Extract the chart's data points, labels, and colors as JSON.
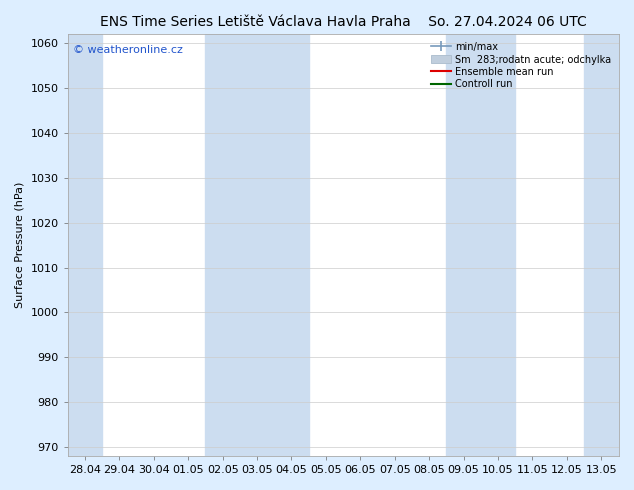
{
  "title_left": "ENS Time Series Letiště Václava Havla Praha",
  "title_right": "So. 27.04.2024 06 UTC",
  "ylabel": "Surface Pressure (hPa)",
  "ylim": [
    968,
    1062
  ],
  "yticks": [
    970,
    980,
    990,
    1000,
    1010,
    1020,
    1030,
    1040,
    1050,
    1060
  ],
  "xtick_labels": [
    "28.04",
    "29.04",
    "30.04",
    "01.05",
    "02.05",
    "03.05",
    "04.05",
    "05.05",
    "06.05",
    "07.05",
    "08.05",
    "09.05",
    "10.05",
    "11.05",
    "12.05",
    "13.05"
  ],
  "xtick_positions": [
    0,
    1,
    2,
    3,
    4,
    5,
    6,
    7,
    8,
    9,
    10,
    11,
    12,
    13,
    14,
    15
  ],
  "shade_columns": [
    0,
    4,
    5,
    6,
    11,
    12,
    15
  ],
  "background_color": "#ddeeff",
  "plot_bg_color": "#ffffff",
  "shade_band_color": "#ccddf0",
  "title_fontsize": 10,
  "axis_fontsize": 8,
  "tick_fontsize": 8,
  "watermark": "© weatheronline.cz",
  "watermark_color": "#2255cc",
  "legend_entries": [
    "min/max",
    "Sm  283;rodatn acute; odchylka",
    "Ensemble mean run",
    "Controll run"
  ],
  "ensemble_color": "#dd0000",
  "control_color": "#006600",
  "minmax_line_color": "#7799bb",
  "spread_color": "#c0cedd"
}
